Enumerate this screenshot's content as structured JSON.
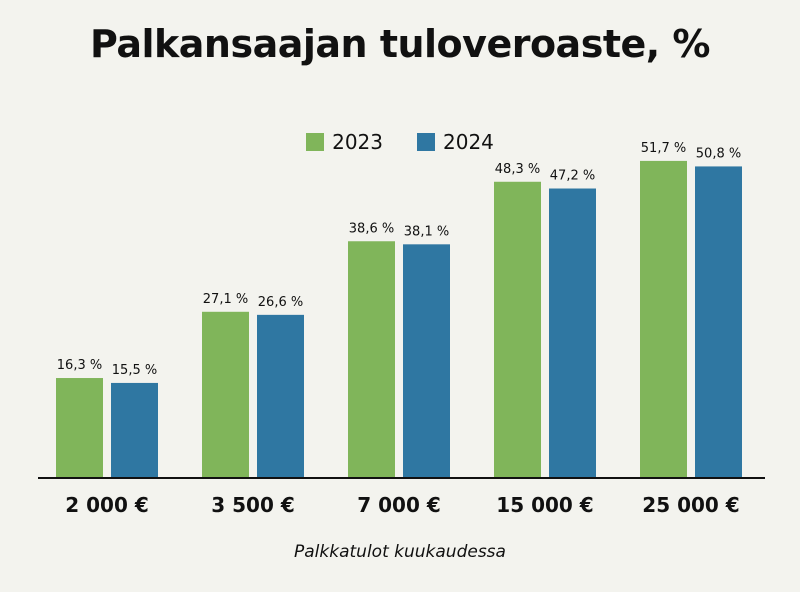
{
  "chart_data": {
    "type": "bar",
    "title": "Palkansaajan tuloveroaste, %",
    "xlabel": "Palkkatulot kuukaudessa",
    "ylabel": "",
    "categories": [
      "2 000 €",
      "3 500 €",
      "7 000 €",
      "15 000 €",
      "25 000 €"
    ],
    "series": [
      {
        "name": "2023",
        "values": [
          16.3,
          27.1,
          38.6,
          48.3,
          51.7
        ],
        "labels": [
          "16,3 %",
          "27,1 %",
          "38,6 %",
          "48,3 %",
          "51,7 %"
        ],
        "color": "#80b55a"
      },
      {
        "name": "2024",
        "values": [
          15.5,
          26.6,
          38.1,
          47.2,
          50.8
        ],
        "labels": [
          "15,5 %",
          "26,6 %",
          "38,1 %",
          "47,2 %",
          "50,8 %"
        ],
        "color": "#2f77a2"
      }
    ],
    "ylim": [
      0,
      60
    ],
    "grid": false,
    "legend": "top-center"
  }
}
